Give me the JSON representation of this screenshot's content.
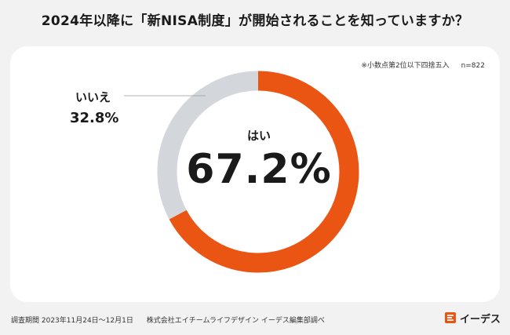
{
  "title": "2024年以降に「新NISA制度」が開始されることを知っていますか？",
  "note": {
    "rounding": "※小数点第2位以下四捨五入",
    "sample": "n=822"
  },
  "footer": {
    "period": "調査期間 2023年11月24日〜12月1日",
    "source": "株式会社エイチームライフデザイン イーデス編集部調べ"
  },
  "logo": {
    "text": "イーデス",
    "color": "#ea5514"
  },
  "colors": {
    "yes": "#ea5514",
    "no": "#d3d6db"
  },
  "chart_data": {
    "type": "pie",
    "donut": true,
    "categories": [
      "はい",
      "いいえ"
    ],
    "values": [
      67.2,
      32.8
    ],
    "labels": [
      "67.2%",
      "32.8%"
    ],
    "title": "",
    "xlabel": "",
    "ylabel": ""
  }
}
